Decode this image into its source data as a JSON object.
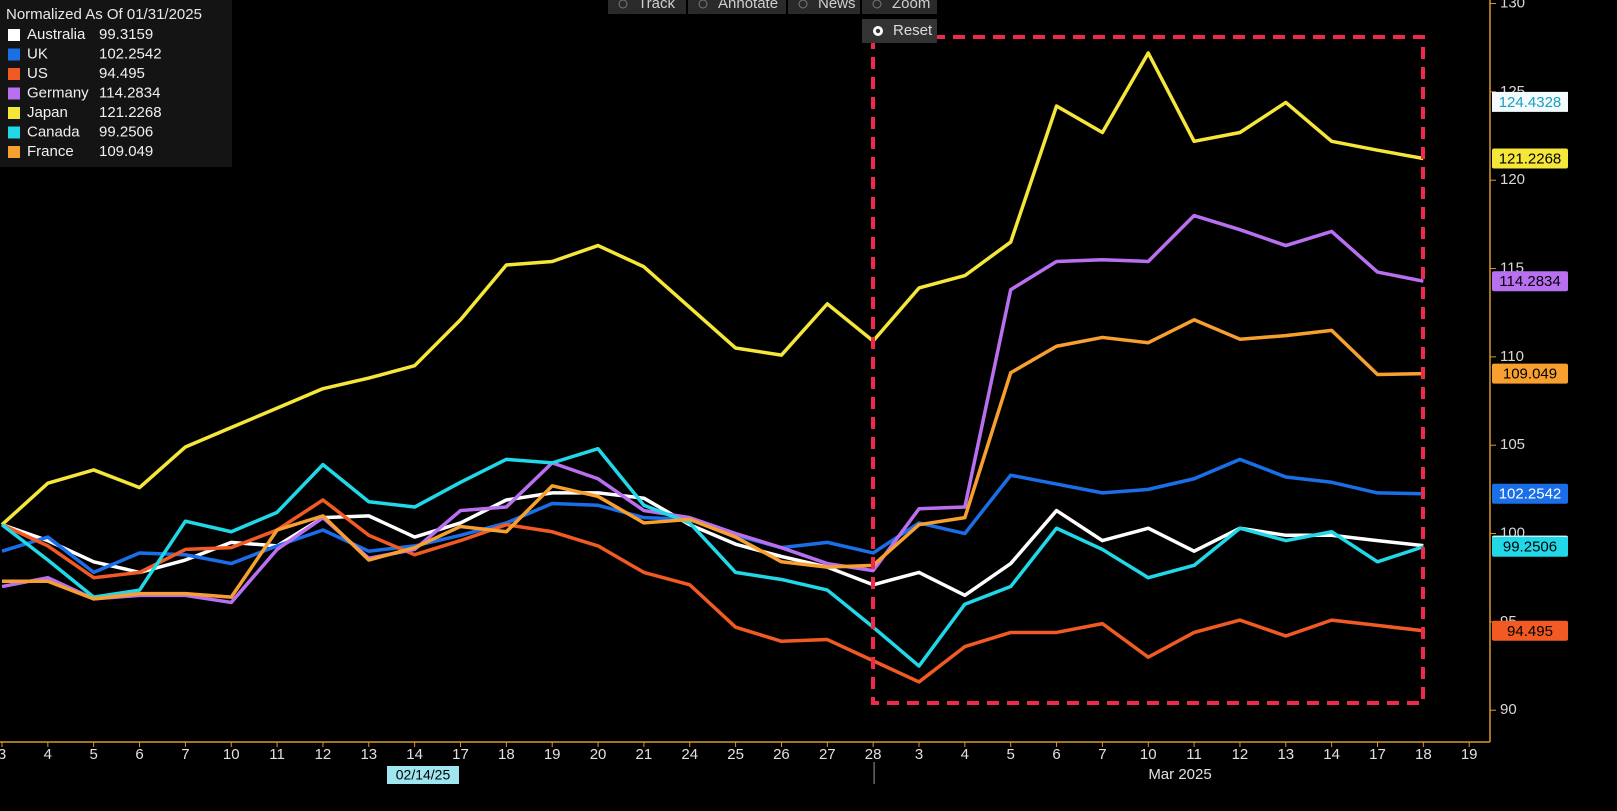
{
  "toolbar": [
    "Track",
    "Annotate",
    "News",
    "Zoom"
  ],
  "reset_button": "Reset",
  "chart_data": {
    "type": "line",
    "legend_title": "Normalized As Of 01/31/2025",
    "legend_position": "top-left",
    "categories": [
      "3",
      "4",
      "5",
      "6",
      "7",
      "10",
      "11",
      "12",
      "13",
      "14",
      "17",
      "18",
      "19",
      "20",
      "21",
      "24",
      "25",
      "26",
      "27",
      "28",
      "3",
      "4",
      "5",
      "6",
      "7",
      "10",
      "11",
      "12",
      "13",
      "14",
      "17",
      "18",
      "19"
    ],
    "x_period_labels": [
      "02/14/25",
      "Mar 2025"
    ],
    "ylim": [
      88.2,
      130.2
    ],
    "yticks": [
      90,
      95,
      100,
      105,
      110,
      115,
      120,
      125,
      130
    ],
    "cursor_value": 124.4328,
    "series": [
      {
        "name": "Australia",
        "color": "#ffffff",
        "values": [
          100.5,
          99.6,
          98.4,
          97.8,
          98.5,
          99.5,
          99.3,
          100.9,
          101.0,
          99.8,
          100.6,
          101.9,
          102.3,
          102.3,
          102.0,
          100.5,
          99.4,
          98.7,
          98.1,
          97.1,
          97.8,
          96.5,
          98.3,
          101.3,
          99.6,
          100.3,
          99.0,
          100.3,
          99.9,
          99.9,
          99.6,
          99.3159,
          null
        ]
      },
      {
        "name": "UK",
        "color": "#1a6fe8",
        "values": [
          99.0,
          99.8,
          97.8,
          98.9,
          98.8,
          98.3,
          99.3,
          100.2,
          99.0,
          99.3,
          99.9,
          100.6,
          101.7,
          101.6,
          100.9,
          100.8,
          99.9,
          99.2,
          99.5,
          98.9,
          100.6,
          100.0,
          103.3,
          102.8,
          102.3,
          102.5,
          103.1,
          104.2,
          103.2,
          102.9,
          102.3,
          102.2542,
          null
        ]
      },
      {
        "name": "US",
        "color": "#f15a22",
        "values": [
          100.5,
          99.3,
          97.5,
          97.8,
          99.1,
          99.2,
          100.2,
          101.9,
          99.9,
          98.8,
          99.6,
          100.5,
          100.1,
          99.3,
          97.8,
          97.1,
          94.7,
          93.9,
          94.0,
          92.8,
          91.6,
          93.6,
          94.4,
          94.4,
          94.9,
          93.0,
          94.4,
          95.1,
          94.2,
          95.1,
          94.8,
          94.495,
          null
        ]
      },
      {
        "name": "Germany",
        "color": "#b870f0",
        "values": [
          97.0,
          97.5,
          96.3,
          96.5,
          96.5,
          96.1,
          99.1,
          100.9,
          98.6,
          99.1,
          101.3,
          101.5,
          104.0,
          103.1,
          101.3,
          100.9,
          100.0,
          99.2,
          98.3,
          97.9,
          101.4,
          101.5,
          113.8,
          115.4,
          115.5,
          115.4,
          118.0,
          117.2,
          116.3,
          117.1,
          114.8,
          114.2834,
          null
        ]
      },
      {
        "name": "Japan",
        "color": "#f5e63a",
        "values": [
          100.5,
          102.85,
          103.6,
          102.6,
          104.9,
          106.0,
          107.1,
          108.2,
          108.8,
          109.5,
          112.1,
          115.2,
          115.4,
          116.3,
          115.1,
          112.8,
          110.5,
          110.1,
          113.0,
          110.9,
          113.9,
          114.6,
          116.5,
          124.2,
          122.7,
          127.2,
          122.2,
          122.7,
          124.4,
          122.2,
          121.7,
          121.2268,
          null
        ]
      },
      {
        "name": "Canada",
        "color": "#20d8e8",
        "values": [
          100.5,
          98.5,
          96.4,
          96.8,
          100.7,
          100.1,
          101.2,
          103.9,
          101.8,
          101.5,
          102.9,
          104.2,
          104.0,
          104.8,
          101.6,
          100.6,
          97.8,
          97.4,
          96.8,
          94.7,
          92.5,
          96.0,
          97.0,
          100.3,
          99.1,
          97.5,
          98.2,
          100.3,
          99.6,
          100.1,
          98.4,
          99.2506,
          null
        ]
      },
      {
        "name": "France",
        "color": "#f7a030",
        "values": [
          97.3,
          97.3,
          96.3,
          96.6,
          96.6,
          96.4,
          100.2,
          101.0,
          98.5,
          99.2,
          100.4,
          100.1,
          102.7,
          102.1,
          100.6,
          100.8,
          99.8,
          98.4,
          98.1,
          98.2,
          100.5,
          100.9,
          109.1,
          110.6,
          111.1,
          110.8,
          112.1,
          111.0,
          111.2,
          111.5,
          109.0,
          109.049,
          null
        ]
      }
    ]
  }
}
